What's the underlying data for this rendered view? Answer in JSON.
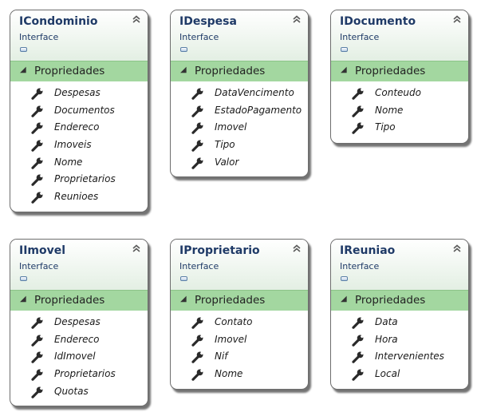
{
  "stereotype": "Interface",
  "section_label": "Propriedades",
  "classes": [
    {
      "name": "ICondominio",
      "properties": [
        "Despesas",
        "Documentos",
        "Endereco",
        "Imoveis",
        "Nome",
        "Proprietarios",
        "Reunioes"
      ]
    },
    {
      "name": "IDespesa",
      "properties": [
        "DataVencimento",
        "EstadoPagamento",
        "Imovel",
        "Tipo",
        "Valor"
      ]
    },
    {
      "name": "IDocumento",
      "properties": [
        "Conteudo",
        "Nome",
        "Tipo"
      ]
    },
    {
      "name": "IImovel",
      "properties": [
        "Despesas",
        "Endereco",
        "IdImovel",
        "Proprietarios",
        "Quotas"
      ]
    },
    {
      "name": "IProprietario",
      "properties": [
        "Contato",
        "Imovel",
        "Nif",
        "Nome"
      ]
    },
    {
      "name": "IReuniao",
      "properties": [
        "Data",
        "Hora",
        "Intervenientes",
        "Local"
      ]
    }
  ]
}
